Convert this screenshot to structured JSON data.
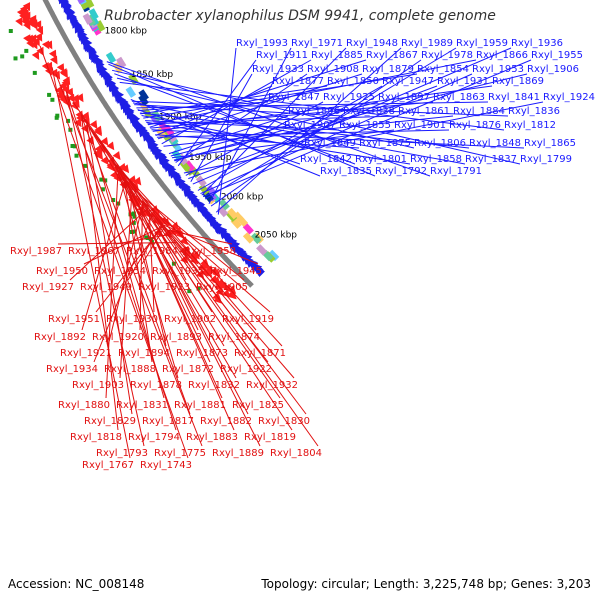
{
  "title": "Rubrobacter xylanophilus DSM 9941, complete genome",
  "accession": "Accession: NC_008148",
  "summary": "Topology: circular; Length: 3,225,748 bp; Genes: 3,203",
  "colors": {
    "forward_label": "#1a1aff",
    "reverse_label": "#e11010",
    "backbone": "#808080",
    "forward_gene": "#1f1fe6",
    "reverse_gene": "#ff2020",
    "rna_tick": "#1e9a1e"
  },
  "kbp_ticks": [
    {
      "label": "2050 kbp",
      "kbp": 2050
    },
    {
      "label": "2000 kbp",
      "kbp": 2000
    },
    {
      "label": "1950 kbp",
      "kbp": 1950
    },
    {
      "label": "1900 kbp",
      "kbp": 1900
    },
    {
      "label": "1850 kbp",
      "kbp": 1850
    },
    {
      "label": "1800 kbp",
      "kbp": 1800
    }
  ],
  "forward_labels": [
    {
      "text": "Rxyl_1993",
      "kbp": 2012
    },
    {
      "text": "Rxyl_1971",
      "kbp": 1998
    },
    {
      "text": "Rxyl_1948",
      "kbp": 1987
    },
    {
      "text": "Rxyl_1989",
      "kbp": 2009
    },
    {
      "text": "Rxyl_1959",
      "kbp": 1992
    },
    {
      "text": "Rxyl_1936",
      "kbp": 1973
    },
    {
      "text": "Rxyl_1911",
      "kbp": 1950
    },
    {
      "text": "Rxyl_1885",
      "kbp": 1923
    },
    {
      "text": "Rxyl_1867",
      "kbp": 1903
    },
    {
      "text": "Rxyl_1978",
      "kbp": 2001
    },
    {
      "text": "Rxyl_1866",
      "kbp": 1900
    },
    {
      "text": "Rxyl_1955",
      "kbp": 1989
    },
    {
      "text": "Rxyl_1933",
      "kbp": 1970
    },
    {
      "text": "Rxyl_1908",
      "kbp": 1946
    },
    {
      "text": "Rxyl_1879",
      "kbp": 1917
    },
    {
      "text": "Rxyl_1854",
      "kbp": 1892
    },
    {
      "text": "Rxyl_1953",
      "kbp": 1985
    },
    {
      "text": "Rxyl_1906",
      "kbp": 1943
    },
    {
      "text": "Rxyl_1877",
      "kbp": 1913
    },
    {
      "text": "Rxyl_1850",
      "kbp": 1887
    },
    {
      "text": "Rxyl_1947",
      "kbp": 1981
    },
    {
      "text": "Rxyl_1931",
      "kbp": 1966
    },
    {
      "text": "Rxyl_1869",
      "kbp": 1908
    },
    {
      "text": "Rxyl_1847",
      "kbp": 1883
    },
    {
      "text": "Rxyl_1925",
      "kbp": 1962
    },
    {
      "text": "Rxyl_1897",
      "kbp": 1938
    },
    {
      "text": "Rxyl_1863",
      "kbp": 1904
    },
    {
      "text": "Rxyl_1841",
      "kbp": 1880
    },
    {
      "text": "Rxyl_1924",
      "kbp": 1959
    },
    {
      "text": "Rxyl_1896",
      "kbp": 1935
    },
    {
      "text": "Rxyl_1838",
      "kbp": 1876
    },
    {
      "text": "Rxyl_1861",
      "kbp": 1899
    },
    {
      "text": "Rxyl_1884",
      "kbp": 1926
    },
    {
      "text": "Rxyl_1836",
      "kbp": 1872
    },
    {
      "text": "Rxyl_1907",
      "kbp": 1944
    },
    {
      "text": "Rxyl_1855",
      "kbp": 1895
    },
    {
      "text": "Rxyl_1901",
      "kbp": 1940
    },
    {
      "text": "Rxyl_1876",
      "kbp": 1915
    },
    {
      "text": "Rxyl_1812",
      "kbp": 1850
    },
    {
      "text": "Rxyl_1849",
      "kbp": 1889
    },
    {
      "text": "Rxyl_1875",
      "kbp": 1912
    },
    {
      "text": "Rxyl_1806",
      "kbp": 1845
    },
    {
      "text": "Rxyl_1848",
      "kbp": 1886
    },
    {
      "text": "Rxyl_1865",
      "kbp": 1906
    },
    {
      "text": "Rxyl_1842",
      "kbp": 1882
    },
    {
      "text": "Rxyl_1801",
      "kbp": 1840
    },
    {
      "text": "Rxyl_1858",
      "kbp": 1897
    },
    {
      "text": "Rxyl_1837",
      "kbp": 1874
    },
    {
      "text": "Rxyl_1799",
      "kbp": 1836
    },
    {
      "text": "Rxyl_1835",
      "kbp": 1870
    },
    {
      "text": "Rxyl_1792",
      "kbp": 1829
    },
    {
      "text": "Rxyl_1791",
      "kbp": 1826
    }
  ],
  "reverse_labels": [
    {
      "text": "Rxyl_1987",
      "kbp": 2006
    },
    {
      "text": "Rxyl_1967",
      "kbp": 1996
    },
    {
      "text": "Rxyl_1984",
      "kbp": 2003
    },
    {
      "text": "Rxyl_1958",
      "kbp": 1990
    },
    {
      "text": "Rxyl_1950",
      "kbp": 1986
    },
    {
      "text": "Rxyl_1954",
      "kbp": 1988
    },
    {
      "text": "Rxyl_1935",
      "kbp": 1972
    },
    {
      "text": "Rxyl_1945",
      "kbp": 1983
    },
    {
      "text": "Rxyl_1927",
      "kbp": 1964
    },
    {
      "text": "Rxyl_1949",
      "kbp": 1984
    },
    {
      "text": "Rxyl_1923",
      "kbp": 1958
    },
    {
      "text": "Rxyl_1905",
      "kbp": 1942
    },
    {
      "text": "Rxyl_1951",
      "kbp": 1986
    },
    {
      "text": "Rxyl_1930",
      "kbp": 1966
    },
    {
      "text": "Rxyl_1902",
      "kbp": 1939
    },
    {
      "text": "Rxyl_1919",
      "kbp": 1955
    },
    {
      "text": "Rxyl_1892",
      "kbp": 1930
    },
    {
      "text": "Rxyl_1920",
      "kbp": 1956
    },
    {
      "text": "Rxyl_1893",
      "kbp": 1931
    },
    {
      "text": "Rxyl_1874",
      "kbp": 1911
    },
    {
      "text": "Rxyl_1921",
      "kbp": 1957
    },
    {
      "text": "Rxyl_1894",
      "kbp": 1933
    },
    {
      "text": "Rxyl_1873",
      "kbp": 1910
    },
    {
      "text": "Rxyl_1871",
      "kbp": 1908
    },
    {
      "text": "Rxyl_1934",
      "kbp": 1971
    },
    {
      "text": "Rxyl_1888",
      "kbp": 1927
    },
    {
      "text": "Rxyl_1872",
      "kbp": 1909
    },
    {
      "text": "Rxyl_1922",
      "kbp": 1957
    },
    {
      "text": "Rxyl_1903",
      "kbp": 1940
    },
    {
      "text": "Rxyl_1878",
      "kbp": 1916
    },
    {
      "text": "Rxyl_1832",
      "kbp": 1871
    },
    {
      "text": "Rxyl_1932",
      "kbp": 1969
    },
    {
      "text": "Rxyl_1880",
      "kbp": 1918
    },
    {
      "text": "Rxyl_1831",
      "kbp": 1869
    },
    {
      "text": "Rxyl_1881",
      "kbp": 1919
    },
    {
      "text": "Rxyl_1825",
      "kbp": 1862
    },
    {
      "text": "Rxyl_1829",
      "kbp": 1866
    },
    {
      "text": "Rxyl_1817",
      "kbp": 1856
    },
    {
      "text": "Rxyl_1882",
      "kbp": 1920
    },
    {
      "text": "Rxyl_1830",
      "kbp": 1867
    },
    {
      "text": "Rxyl_1818",
      "kbp": 1857
    },
    {
      "text": "Rxyl_1794",
      "kbp": 1831
    },
    {
      "text": "Rxyl_1883",
      "kbp": 1921
    },
    {
      "text": "Rxyl_1819",
      "kbp": 1858
    },
    {
      "text": "Rxyl_1793",
      "kbp": 1830
    },
    {
      "text": "Rxyl_1775",
      "kbp": 1811
    },
    {
      "text": "Rxyl_1889",
      "kbp": 1928
    },
    {
      "text": "Rxyl_1804",
      "kbp": 1842
    },
    {
      "text": "Rxyl_1767",
      "kbp": 1804
    },
    {
      "text": "Rxyl_1743",
      "kbp": 1781
    }
  ]
}
